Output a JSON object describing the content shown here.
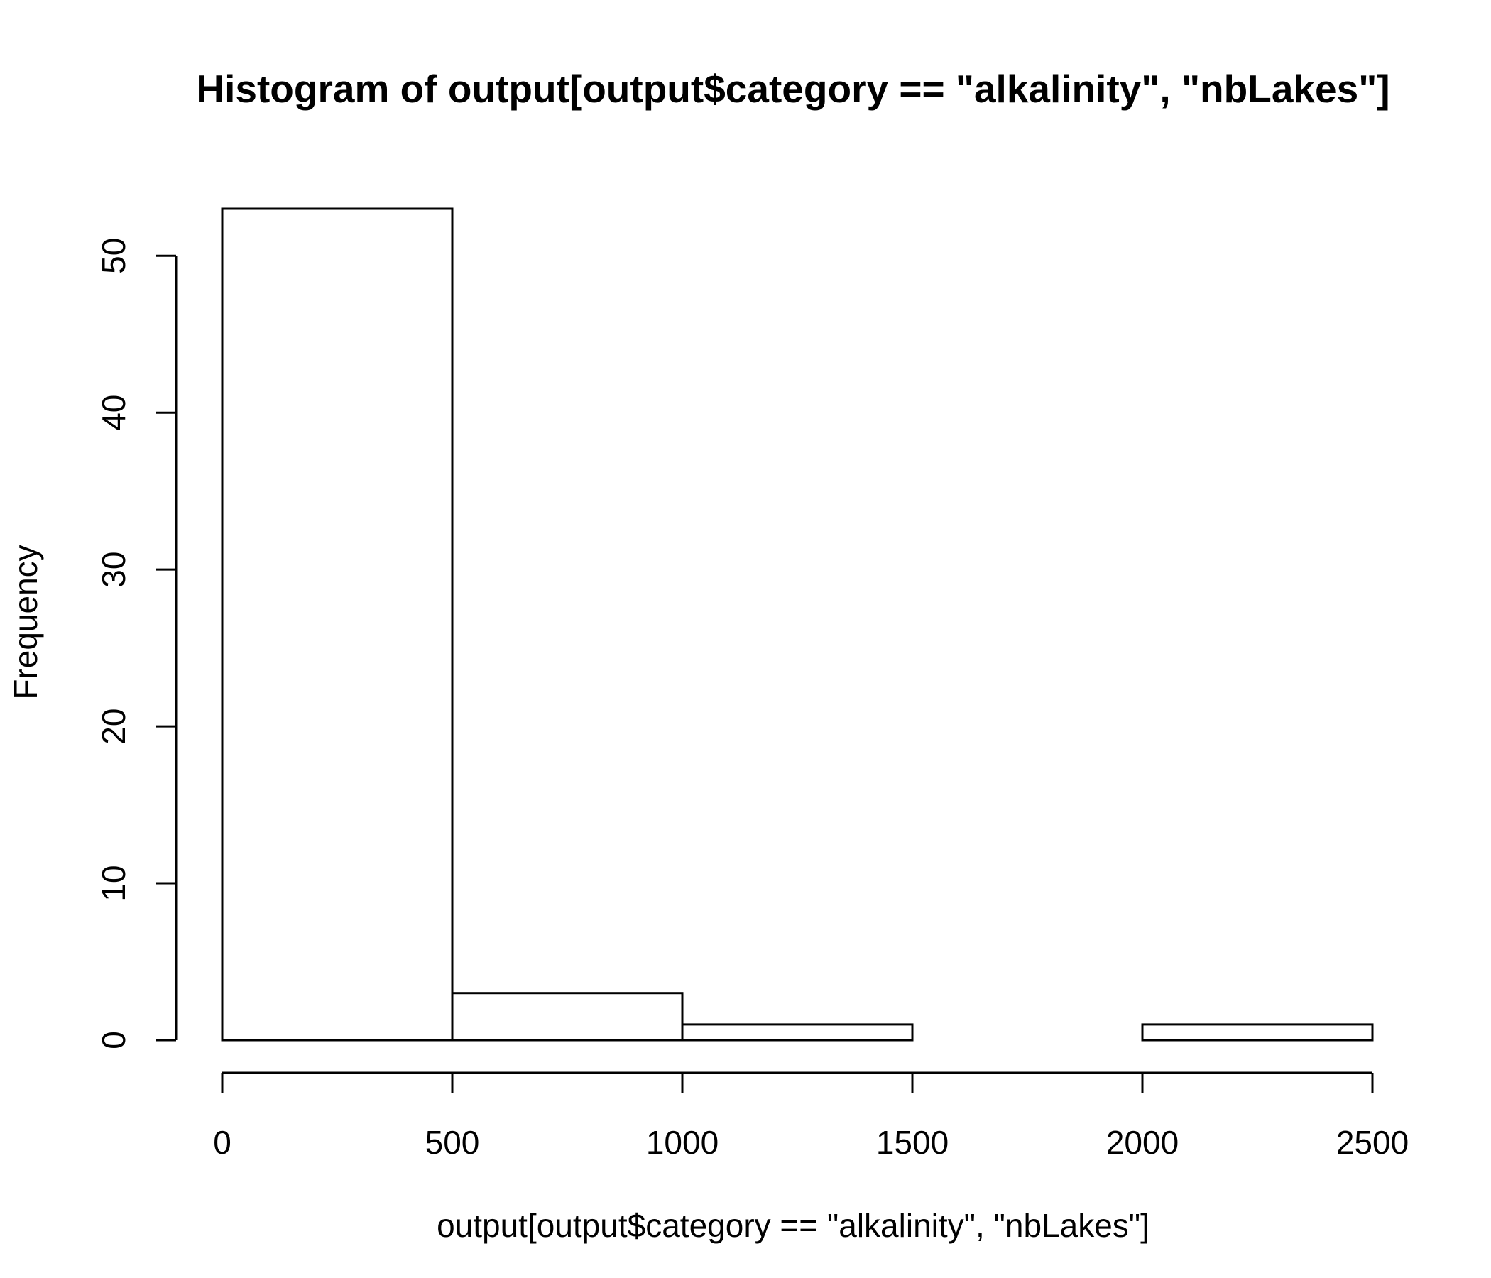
{
  "chart_data": {
    "type": "bar",
    "subtype": "histogram",
    "title": "Histogram of output[output$category == \"alkalinity\", \"nbLakes\"]",
    "xlabel": "output[output$category == \"alkalinity\", \"nbLakes\"]",
    "ylabel": "Frequency",
    "bins": [
      {
        "from": 0,
        "to": 500,
        "count": 53
      },
      {
        "from": 500,
        "to": 1000,
        "count": 3
      },
      {
        "from": 1000,
        "to": 1500,
        "count": 1
      },
      {
        "from": 1500,
        "to": 2000,
        "count": 0
      },
      {
        "from": 2000,
        "to": 2500,
        "count": 1
      }
    ],
    "x_ticks": [
      0,
      500,
      1000,
      1500,
      2000,
      2500
    ],
    "y_ticks": [
      0,
      10,
      20,
      30,
      40,
      50
    ],
    "xlim": [
      0,
      2500
    ],
    "ylim": [
      0,
      53
    ],
    "grid": false,
    "colors": {
      "bar_fill": "#ffffff",
      "bar_stroke": "#000000",
      "text": "#000000"
    }
  }
}
